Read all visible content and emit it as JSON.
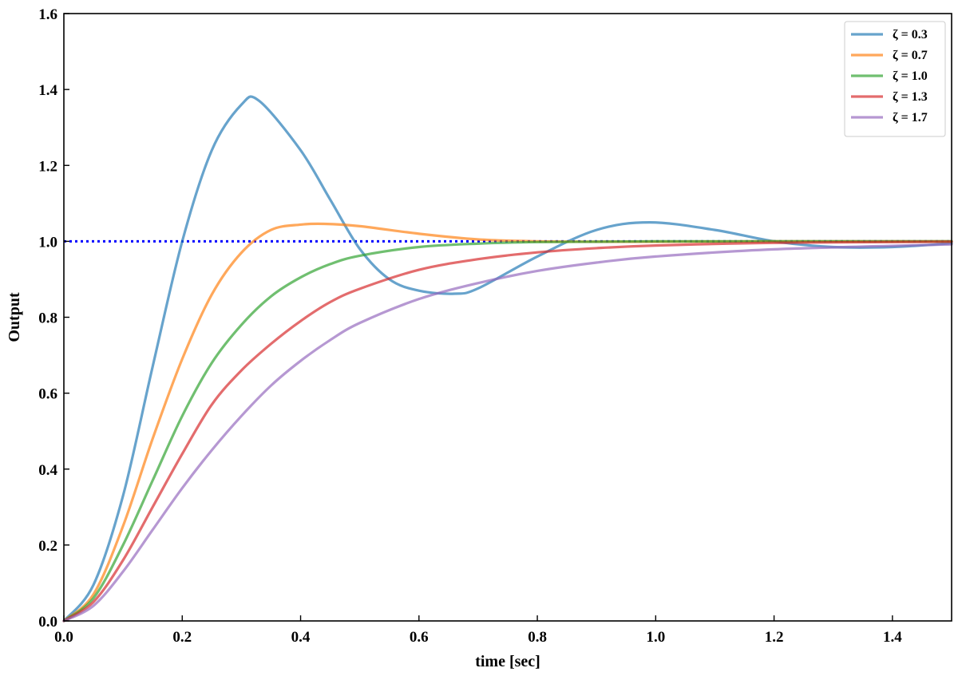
{
  "chart_data": {
    "type": "line",
    "title": "",
    "xlabel": "time [sec]",
    "ylabel": "Output",
    "xlim": [
      0,
      1.5
    ],
    "ylim": [
      0,
      1.6
    ],
    "xticks": [
      "0.0",
      "0.2",
      "0.4",
      "0.6",
      "0.8",
      "1.0",
      "1.2",
      "1.4"
    ],
    "yticks": [
      "0.0",
      "0.2",
      "0.4",
      "0.6",
      "0.8",
      "1.0",
      "1.2",
      "1.4",
      "1.6"
    ],
    "grid": false,
    "legend_position": "top-right",
    "reference_line": {
      "y": 1.0,
      "style": "dotted",
      "color": "#0000ff"
    },
    "series": [
      {
        "name": "ζ = 0.3",
        "color": "#1f77b4",
        "x": [
          0,
          0.05,
          0.1,
          0.15,
          0.2,
          0.25,
          0.3,
          0.33,
          0.4,
          0.45,
          0.5,
          0.55,
          0.6,
          0.66,
          0.7,
          0.8,
          0.9,
          0.99,
          1.1,
          1.2,
          1.3,
          1.4,
          1.5
        ],
        "y": [
          0,
          0.095,
          0.33,
          0.67,
          1.0,
          1.24,
          1.36,
          1.37,
          1.24,
          1.11,
          0.98,
          0.9,
          0.87,
          0.862,
          0.876,
          0.96,
          1.03,
          1.05,
          1.03,
          1.0,
          0.985,
          0.985,
          0.995
        ]
      },
      {
        "name": "ζ = 0.7",
        "color": "#ff7f0e",
        "x": [
          0,
          0.05,
          0.1,
          0.15,
          0.2,
          0.25,
          0.3,
          0.35,
          0.4,
          0.44,
          0.5,
          0.6,
          0.7,
          0.8,
          0.9,
          1.0,
          1.2,
          1.5
        ],
        "y": [
          0,
          0.07,
          0.25,
          0.48,
          0.69,
          0.86,
          0.97,
          1.03,
          1.044,
          1.046,
          1.04,
          1.02,
          1.005,
          1.0,
          0.999,
          0.999,
          1.0,
          1.0
        ]
      },
      {
        "name": "ζ = 1.0",
        "color": "#2ca02c",
        "x": [
          0,
          0.05,
          0.1,
          0.15,
          0.2,
          0.25,
          0.3,
          0.35,
          0.4,
          0.45,
          0.5,
          0.6,
          0.7,
          0.8,
          0.9,
          1.0,
          1.2,
          1.5
        ],
        "y": [
          0,
          0.06,
          0.2,
          0.37,
          0.54,
          0.68,
          0.78,
          0.855,
          0.905,
          0.94,
          0.962,
          0.985,
          0.994,
          0.998,
          0.999,
          1.0,
          1.0,
          1.0
        ]
      },
      {
        "name": "ζ = 1.3",
        "color": "#d62728",
        "x": [
          0,
          0.05,
          0.1,
          0.15,
          0.2,
          0.25,
          0.3,
          0.35,
          0.4,
          0.45,
          0.5,
          0.6,
          0.7,
          0.8,
          0.9,
          1.0,
          1.2,
          1.5
        ],
        "y": [
          0,
          0.05,
          0.16,
          0.3,
          0.44,
          0.57,
          0.66,
          0.73,
          0.79,
          0.84,
          0.875,
          0.925,
          0.953,
          0.971,
          0.982,
          0.989,
          0.996,
          0.999
        ]
      },
      {
        "name": "ζ = 1.7",
        "color": "#9467bd",
        "x": [
          0,
          0.05,
          0.1,
          0.15,
          0.2,
          0.25,
          0.3,
          0.35,
          0.4,
          0.45,
          0.5,
          0.6,
          0.7,
          0.8,
          0.9,
          1.0,
          1.2,
          1.5
        ],
        "y": [
          0,
          0.04,
          0.13,
          0.24,
          0.35,
          0.45,
          0.54,
          0.62,
          0.685,
          0.74,
          0.785,
          0.848,
          0.89,
          0.922,
          0.944,
          0.96,
          0.979,
          0.992
        ]
      }
    ]
  }
}
